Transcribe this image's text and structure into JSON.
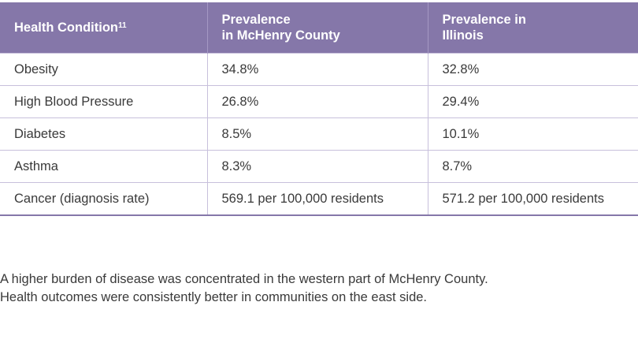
{
  "table": {
    "headers": [
      {
        "text": "Health Condition",
        "sup": "11"
      },
      {
        "line1": "Prevalence",
        "line2": "in McHenry County"
      },
      {
        "line1": "Prevalence in",
        "line2": "Illinois"
      }
    ],
    "rows": [
      [
        "Obesity",
        "34.8%",
        "32.8%"
      ],
      [
        "High Blood Pressure",
        "26.8%",
        "29.4%"
      ],
      [
        "Diabetes",
        "8.5%",
        "10.1%"
      ],
      [
        "Asthma",
        "8.3%",
        "8.7%"
      ],
      [
        "Cancer (diagnosis rate)",
        "569.1 per 100,000 residents",
        "571.2 per 100,000 residents"
      ]
    ]
  },
  "paragraph": [
    "A higher burden of disease was concentrated in the western part of McHenry County.",
    "Health outcomes were consistently better in communities on the east side."
  ],
  "colors": {
    "header_bg": "#8577a9",
    "grid": "#c7c0dc"
  }
}
